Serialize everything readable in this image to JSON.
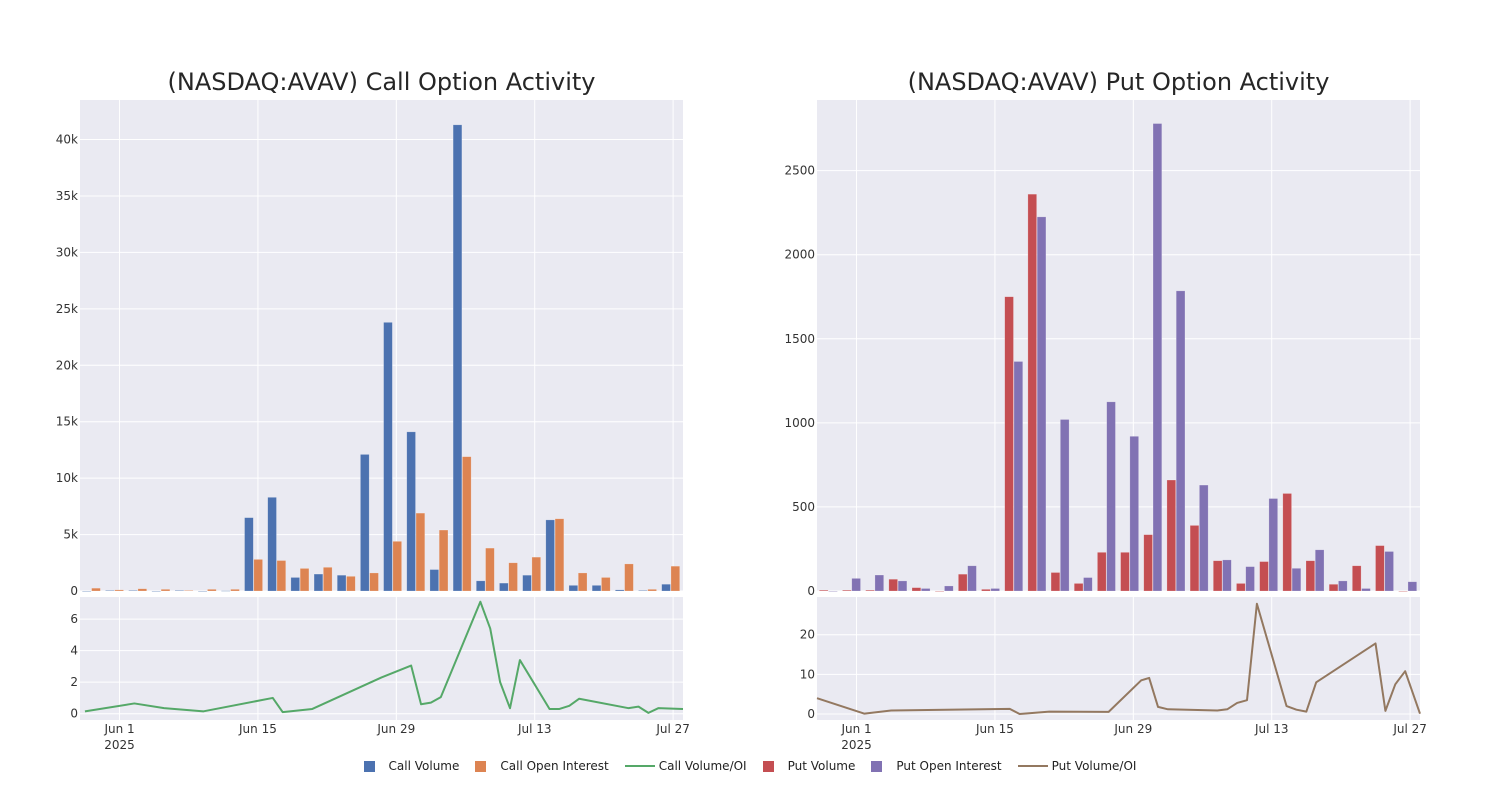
{
  "chart_data": [
    {
      "type": "bar",
      "title": "(NASDAQ:AVAV) Call Option Activity",
      "xlabel": "",
      "ylabel": "",
      "ylim": [
        0,
        43500
      ],
      "yticks": [
        0,
        5000,
        10000,
        15000,
        20000,
        25000,
        30000,
        35000,
        40000
      ],
      "ytick_labels": [
        "0",
        "5k",
        "10k",
        "15k",
        "20k",
        "25k",
        "30k",
        "35k",
        "40k"
      ],
      "grid": true,
      "series": [
        {
          "name": "Call Volume",
          "color": "#4c72b0",
          "values": [
            0,
            50,
            50,
            0,
            50,
            0,
            20,
            6500,
            8300,
            1200,
            1500,
            1400,
            12100,
            23800,
            14100,
            1900,
            41300,
            900,
            700,
            1400,
            6300,
            500,
            500,
            100,
            50,
            600
          ]
        },
        {
          "name": "Call Open Interest",
          "color": "#dd8452",
          "values": [
            250,
            100,
            200,
            150,
            50,
            150,
            150,
            2800,
            2700,
            2000,
            2100,
            1300,
            1600,
            4400,
            6900,
            5400,
            11900,
            3800,
            2500,
            3000,
            6400,
            1600,
            1200,
            2400,
            150,
            2200
          ]
        }
      ],
      "sub_chart": {
        "type": "line",
        "name": "Call Volume/OI",
        "color": "#55a868",
        "ylim": [
          -0.4,
          7.4
        ],
        "yticks": [
          0,
          2,
          4,
          6
        ],
        "ytick_labels": [
          "0",
          "2",
          "4",
          "6"
        ],
        "points": [
          [
            -3.5,
            0.15
          ],
          [
            1.5,
            0.65
          ],
          [
            4.5,
            0.35
          ],
          [
            8.5,
            0.15
          ],
          [
            15.5,
            1.0
          ],
          [
            16.5,
            0.1
          ],
          [
            19.5,
            0.3
          ],
          [
            26.5,
            2.3
          ],
          [
            29.5,
            3.05
          ],
          [
            30.5,
            0.6
          ],
          [
            31.5,
            0.7
          ],
          [
            32.5,
            1.05
          ],
          [
            36.5,
            7.1
          ],
          [
            37.5,
            5.4
          ],
          [
            38.5,
            2.0
          ],
          [
            39.5,
            0.35
          ],
          [
            40.5,
            3.4
          ],
          [
            43.5,
            0.3
          ],
          [
            44.5,
            0.3
          ],
          [
            45.5,
            0.5
          ],
          [
            46.5,
            0.95
          ],
          [
            51.5,
            0.35
          ],
          [
            52.5,
            0.45
          ],
          [
            53.5,
            0.05
          ],
          [
            54.5,
            0.35
          ],
          [
            57.0,
            0.3
          ]
        ]
      },
      "x_ticks": [
        {
          "day": 0,
          "label": "Jun 1",
          "sub": "2025"
        },
        {
          "day": 14,
          "label": "Jun 15",
          "sub": ""
        },
        {
          "day": 28,
          "label": "Jun 29",
          "sub": ""
        },
        {
          "day": 42,
          "label": "Jul 13",
          "sub": ""
        },
        {
          "day": 56,
          "label": "Jul 27",
          "sub": ""
        }
      ],
      "x_range_days": [
        -4.0,
        57.0
      ]
    },
    {
      "type": "bar",
      "title": "(NASDAQ:AVAV) Put Option Activity",
      "xlabel": "",
      "ylabel": "",
      "ylim": [
        0,
        2920
      ],
      "yticks": [
        0,
        500,
        1000,
        1500,
        2000,
        2500
      ],
      "ytick_labels": [
        "0",
        "500",
        "1000",
        "1500",
        "2000",
        "2500"
      ],
      "grid": true,
      "series": [
        {
          "name": "Put Volume",
          "color": "#c44e52",
          "values": [
            5,
            5,
            5,
            70,
            20,
            0,
            100,
            10,
            1750,
            2360,
            110,
            45,
            230,
            230,
            335,
            660,
            390,
            180,
            45,
            175,
            580,
            180,
            40,
            150,
            270,
            0
          ]
        },
        {
          "name": "Put Open Interest",
          "color": "#8172b3",
          "values": [
            0,
            75,
            95,
            60,
            15,
            30,
            150,
            15,
            1365,
            2225,
            1020,
            80,
            1125,
            920,
            2780,
            1785,
            630,
            185,
            145,
            550,
            135,
            245,
            60,
            15,
            235,
            55
          ]
        }
      ],
      "sub_chart": {
        "type": "line",
        "name": "Put Volume/OI",
        "color": "#937860",
        "ylim": [
          -1.5,
          29.5
        ],
        "yticks": [
          0,
          10,
          20
        ],
        "ytick_labels": [
          "0",
          "10",
          "20"
        ],
        "points": [
          [
            -4.0,
            4.0
          ],
          [
            0.8,
            0.1
          ],
          [
            3.5,
            0.9
          ],
          [
            15.5,
            1.3
          ],
          [
            16.5,
            0.0
          ],
          [
            19.5,
            0.6
          ],
          [
            25.5,
            0.55
          ],
          [
            28.8,
            8.5
          ],
          [
            29.6,
            9.1
          ],
          [
            30.5,
            1.8
          ],
          [
            31.5,
            1.2
          ],
          [
            36.5,
            0.9
          ],
          [
            37.5,
            1.2
          ],
          [
            38.5,
            2.8
          ],
          [
            39.5,
            3.5
          ],
          [
            40.5,
            27.8
          ],
          [
            43.5,
            2.0
          ],
          [
            44.5,
            1.1
          ],
          [
            45.5,
            0.6
          ],
          [
            46.5,
            8.0
          ],
          [
            52.5,
            17.8
          ],
          [
            53.5,
            0.8
          ],
          [
            54.5,
            7.5
          ],
          [
            55.5,
            10.8
          ],
          [
            58.5,
            0.1
          ]
        ]
      },
      "x_ticks": [
        {
          "day": 0,
          "label": "Jun 1",
          "sub": "2025"
        },
        {
          "day": 14,
          "label": "Jun 15",
          "sub": ""
        },
        {
          "day": 28,
          "label": "Jun 29",
          "sub": ""
        },
        {
          "day": 42,
          "label": "Jul 13",
          "sub": ""
        },
        {
          "day": 56,
          "label": "Jul 27",
          "sub": ""
        }
      ],
      "x_range_days": [
        -4.0,
        57.0
      ]
    }
  ],
  "legend": {
    "placement": "bottom-center",
    "items": [
      {
        "label": "Call Volume",
        "kind": "box",
        "color": "#4c72b0"
      },
      {
        "label": "Call Open Interest",
        "kind": "box",
        "color": "#dd8452"
      },
      {
        "label": "Call Volume/OI",
        "kind": "line",
        "color": "#55a868"
      },
      {
        "label": "Put Volume",
        "kind": "box",
        "color": "#c44e52"
      },
      {
        "label": "Put Open Interest",
        "kind": "box",
        "color": "#8172b3"
      },
      {
        "label": "Put Volume/OI",
        "kind": "line",
        "color": "#937860"
      }
    ]
  }
}
